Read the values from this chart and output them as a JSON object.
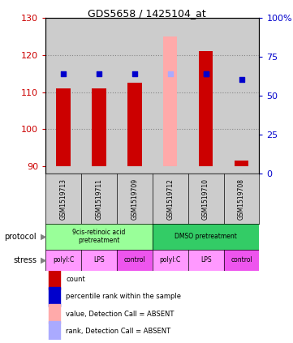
{
  "title": "GDS5658 / 1425104_at",
  "samples": [
    "GSM1519713",
    "GSM1519711",
    "GSM1519709",
    "GSM1519712",
    "GSM1519710",
    "GSM1519708"
  ],
  "bar_bottom": 90,
  "ylim": [
    88,
    130
  ],
  "yticks_left": [
    90,
    100,
    110,
    120,
    130
  ],
  "yticks_right": [
    0,
    25,
    50,
    75,
    100
  ],
  "bar_values": [
    111,
    111,
    112.5,
    null,
    121,
    91.5
  ],
  "bar_colors": [
    "#cc0000",
    "#cc0000",
    "#cc0000",
    null,
    "#cc0000",
    "#cc0000"
  ],
  "absent_bar_value": 125,
  "absent_bar_col_idx": 3,
  "absent_bar_color": "#ffaaaa",
  "rank_dots": [
    115,
    115,
    115,
    null,
    115,
    113.5
  ],
  "rank_dot_color": "#0000cc",
  "absent_rank_value": 115,
  "absent_rank_color": "#aaaaff",
  "absent_rank_col_idx": 3,
  "protocol_groups": [
    {
      "label": "9cis-retinoic acid\npretreatment",
      "cols": [
        0,
        1,
        2
      ],
      "color": "#99ff99"
    },
    {
      "label": "DMSO pretreatment",
      "cols": [
        3,
        4,
        5
      ],
      "color": "#33cc66"
    }
  ],
  "stress_colors": [
    "#ff99ff",
    "#ff99ff",
    "#ee55ee",
    "#ff99ff",
    "#ff99ff",
    "#ee55ee"
  ],
  "stress_labels": [
    "polyI:C",
    "LPS",
    "control",
    "polyI:C",
    "LPS",
    "control"
  ],
  "legend_items": [
    {
      "color": "#cc0000",
      "label": "count"
    },
    {
      "color": "#0000cc",
      "label": "percentile rank within the sample"
    },
    {
      "color": "#ffaaaa",
      "label": "value, Detection Call = ABSENT"
    },
    {
      "color": "#aaaaff",
      "label": "rank, Detection Call = ABSENT"
    }
  ],
  "grid_color": "#888888",
  "sample_bg": "#cccccc",
  "bar_width": 0.4,
  "ncols": 6
}
